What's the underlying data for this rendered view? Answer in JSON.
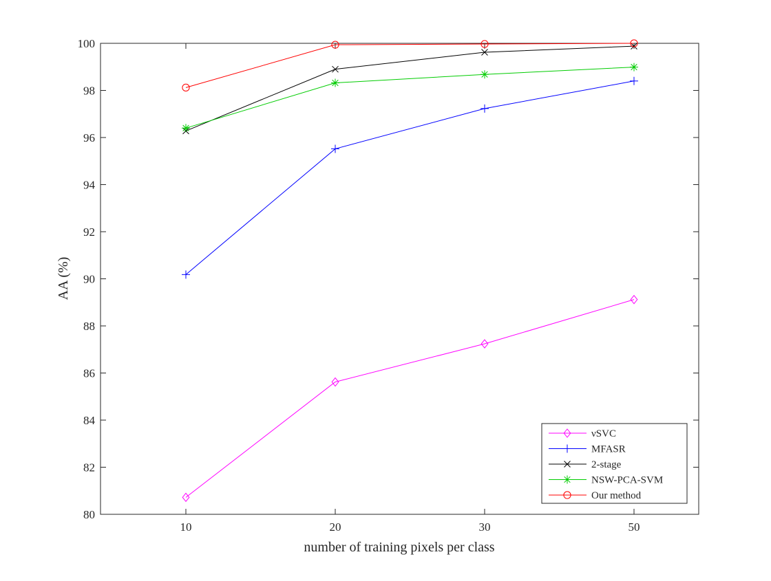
{
  "chart_data": {
    "type": "line",
    "title": "",
    "xlabel": "number of training pixels per class",
    "ylabel": "AA (%)",
    "categories": [
      "10",
      "20",
      "30",
      "50"
    ],
    "ylim": [
      80,
      100
    ],
    "yticks": [
      80,
      82,
      84,
      86,
      88,
      90,
      92,
      94,
      96,
      98,
      100
    ],
    "grid": false,
    "legend_position": "bottom-right",
    "series": [
      {
        "name": "νSVC",
        "color": "#ff00ff",
        "marker": "diamond",
        "values": [
          80.72,
          85.62,
          87.24,
          89.12
        ]
      },
      {
        "name": "MFASR",
        "color": "#0000ff",
        "marker": "plus",
        "values": [
          90.18,
          95.52,
          97.23,
          98.4
        ]
      },
      {
        "name": "2-stage",
        "color": "#000000",
        "marker": "x",
        "values": [
          96.28,
          98.9,
          99.62,
          99.88
        ]
      },
      {
        "name": "NSW-PCA-SVM",
        "color": "#00cc00",
        "marker": "star",
        "values": [
          96.4,
          98.32,
          98.68,
          98.99
        ]
      },
      {
        "name": "Our method",
        "color": "#ff0000",
        "marker": "circle",
        "values": [
          98.12,
          99.94,
          99.97,
          100.0
        ]
      }
    ]
  }
}
